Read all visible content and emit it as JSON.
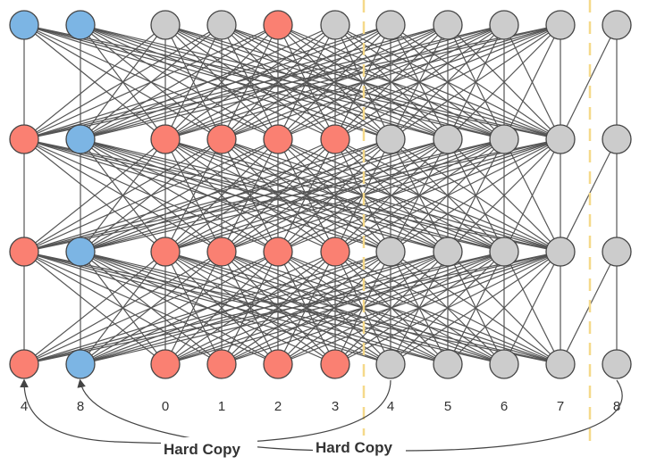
{
  "colors": {
    "blue": "#7cb5e4",
    "red": "#fa8072",
    "gray": "#cccccc",
    "divider": "#f5d98a"
  },
  "diagram": {
    "rows": [
      [
        "blue",
        "blue",
        "gray",
        "gray",
        "red",
        "gray",
        "gray",
        "gray",
        "gray",
        "gray",
        "gray"
      ],
      [
        "red",
        "blue",
        "red",
        "red",
        "red",
        "red",
        "gray",
        "gray",
        "gray",
        "gray",
        "gray"
      ],
      [
        "red",
        "blue",
        "red",
        "red",
        "red",
        "red",
        "gray",
        "gray",
        "gray",
        "gray",
        "gray"
      ],
      [
        "red",
        "blue",
        "red",
        "red",
        "red",
        "red",
        "gray",
        "gray",
        "gray",
        "gray",
        "gray"
      ]
    ],
    "index_labels": [
      "4",
      "8",
      "0",
      "1",
      "2",
      "3",
      "4",
      "5",
      "6",
      "7",
      "8"
    ],
    "annotations": {
      "hard_copy_left": "Hard Copy",
      "hard_copy_right": "Hard Copy"
    }
  }
}
